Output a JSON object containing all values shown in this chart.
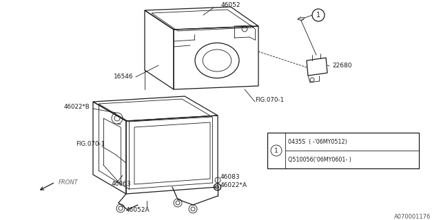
{
  "bg_color": "#ffffff",
  "dark": "#1a1a1a",
  "diagram_id": "A070001176",
  "legend_line1": "0435S  ( -’06MY0512)",
  "legend_line2": "Q510056(’06MY0601- )"
}
